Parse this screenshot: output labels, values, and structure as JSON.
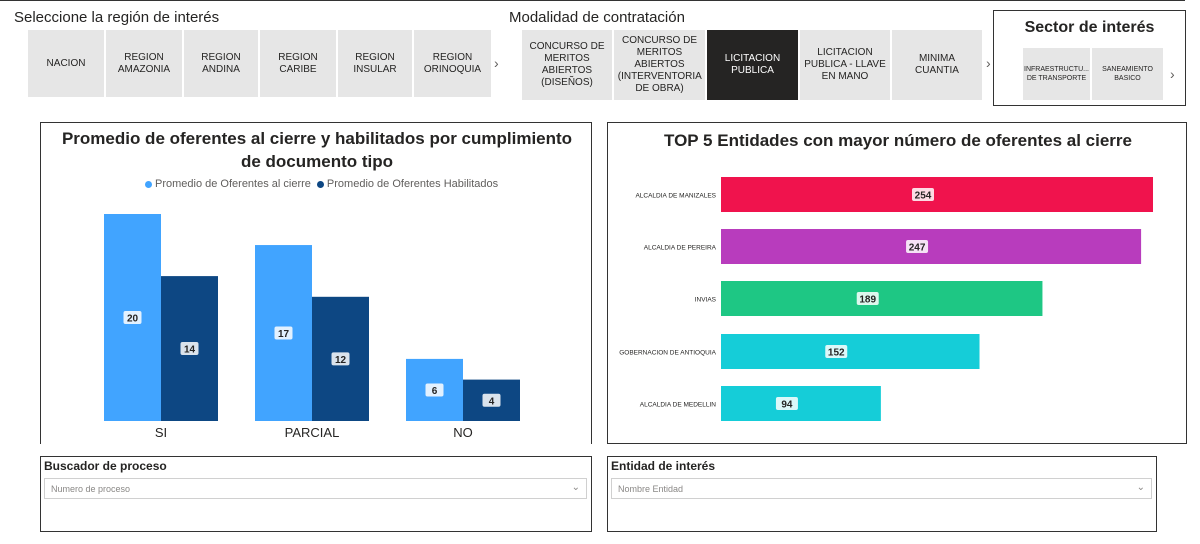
{
  "region": {
    "title": "Seleccione la región de interés",
    "items": [
      "NACION",
      "REGION AMAZONIA",
      "REGION ANDINA",
      "REGION CARIBE",
      "REGION INSULAR",
      "REGION ORINOQUIA"
    ],
    "next_icon": "chevron-right-icon"
  },
  "modalidad": {
    "title": "Modalidad de contratación",
    "items": [
      "CONCURSO DE MERITOS ABIERTOS (DISEÑOS)",
      "CONCURSO DE MERITOS ABIERTOS (INTERVENTORIA DE OBRA)",
      "LICITACION PUBLICA",
      "LICITACION PUBLICA - LLAVE EN MANO",
      "MINIMA CUANTIA"
    ],
    "selected": "LICITACION PUBLICA"
  },
  "sector": {
    "title": "Sector de interés",
    "items": [
      "INFRAESTRUCTU... DE TRANSPORTE",
      "SANEAMIENTO BASICO"
    ]
  },
  "chart_left": {
    "title": "Promedio de oferentes al cierre y habilitados por cumplimiento de documento tipo"
  },
  "chart_right": {
    "title": "TOP 5 Entidades con mayor número de oferentes al cierre"
  },
  "buscador": {
    "title": "Buscador de proceso",
    "placeholder": "Numero de proceso"
  },
  "entidad": {
    "title": "Entidad de interés",
    "placeholder": "Nombre Entidad"
  },
  "chart_data": [
    {
      "type": "bar",
      "title": "Promedio de oferentes al cierre y habilitados por cumplimiento de documento tipo",
      "categories": [
        "SI",
        "PARCIAL",
        "NO"
      ],
      "series": [
        {
          "name": "Promedio de Oferentes al cierre",
          "values": [
            20,
            17,
            6
          ],
          "color": "#41a4ff"
        },
        {
          "name": "Promedio de Oferentes Habilitados",
          "values": [
            14,
            12,
            4
          ],
          "color": "#0d4783"
        }
      ],
      "ylim": [
        0,
        20
      ],
      "legend": "top-center",
      "grid": false
    },
    {
      "type": "bar",
      "orientation": "horizontal",
      "title": "TOP 5 Entidades con mayor número de oferentes al cierre",
      "categories": [
        "ALCALDIA DE MANIZALES",
        "ALCALDIA DE PEREIRA",
        "INVIAS",
        "GOBERNACION DE ANTIOQUIA",
        "ALCALDIA DE MEDELLIN"
      ],
      "values": [
        254,
        247,
        189,
        152,
        94
      ],
      "colors": [
        "#f0134d",
        "#b83cbd",
        "#1ec784",
        "#15cdd8",
        "#15cdd8"
      ],
      "xlim": [
        0,
        254
      ],
      "grid": false
    }
  ]
}
